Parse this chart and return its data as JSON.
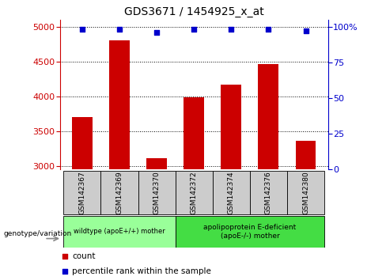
{
  "title": "GDS3671 / 1454925_x_at",
  "samples": [
    "GSM142367",
    "GSM142369",
    "GSM142370",
    "GSM142372",
    "GSM142374",
    "GSM142376",
    "GSM142380"
  ],
  "counts": [
    3700,
    4800,
    3110,
    3980,
    4170,
    4460,
    3360
  ],
  "percentile_ranks": [
    98,
    98,
    96,
    98,
    98,
    98,
    97
  ],
  "ylim_left": [
    2950,
    5100
  ],
  "ylim_right": [
    0,
    105
  ],
  "yticks_left": [
    3000,
    3500,
    4000,
    4500,
    5000
  ],
  "yticks_right": [
    0,
    25,
    50,
    75,
    100
  ],
  "bar_color": "#cc0000",
  "dot_color": "#0000cc",
  "grid_color": "#000000",
  "bg_color": "#ffffff",
  "tick_label_bg": "#cccccc",
  "group1_label": "wildtype (apoE+/+) mother",
  "group2_label": "apolipoprotein E-deficient\n(apoE-/-) mother",
  "group1_indices": [
    0,
    1,
    2
  ],
  "group2_indices": [
    3,
    4,
    5,
    6
  ],
  "group1_color": "#99ff99",
  "group2_color": "#44dd44",
  "genotype_label": "genotype/variation",
  "legend_count_label": "count",
  "legend_pct_label": "percentile rank within the sample",
  "title_fontsize": 10,
  "tick_fontsize": 8
}
